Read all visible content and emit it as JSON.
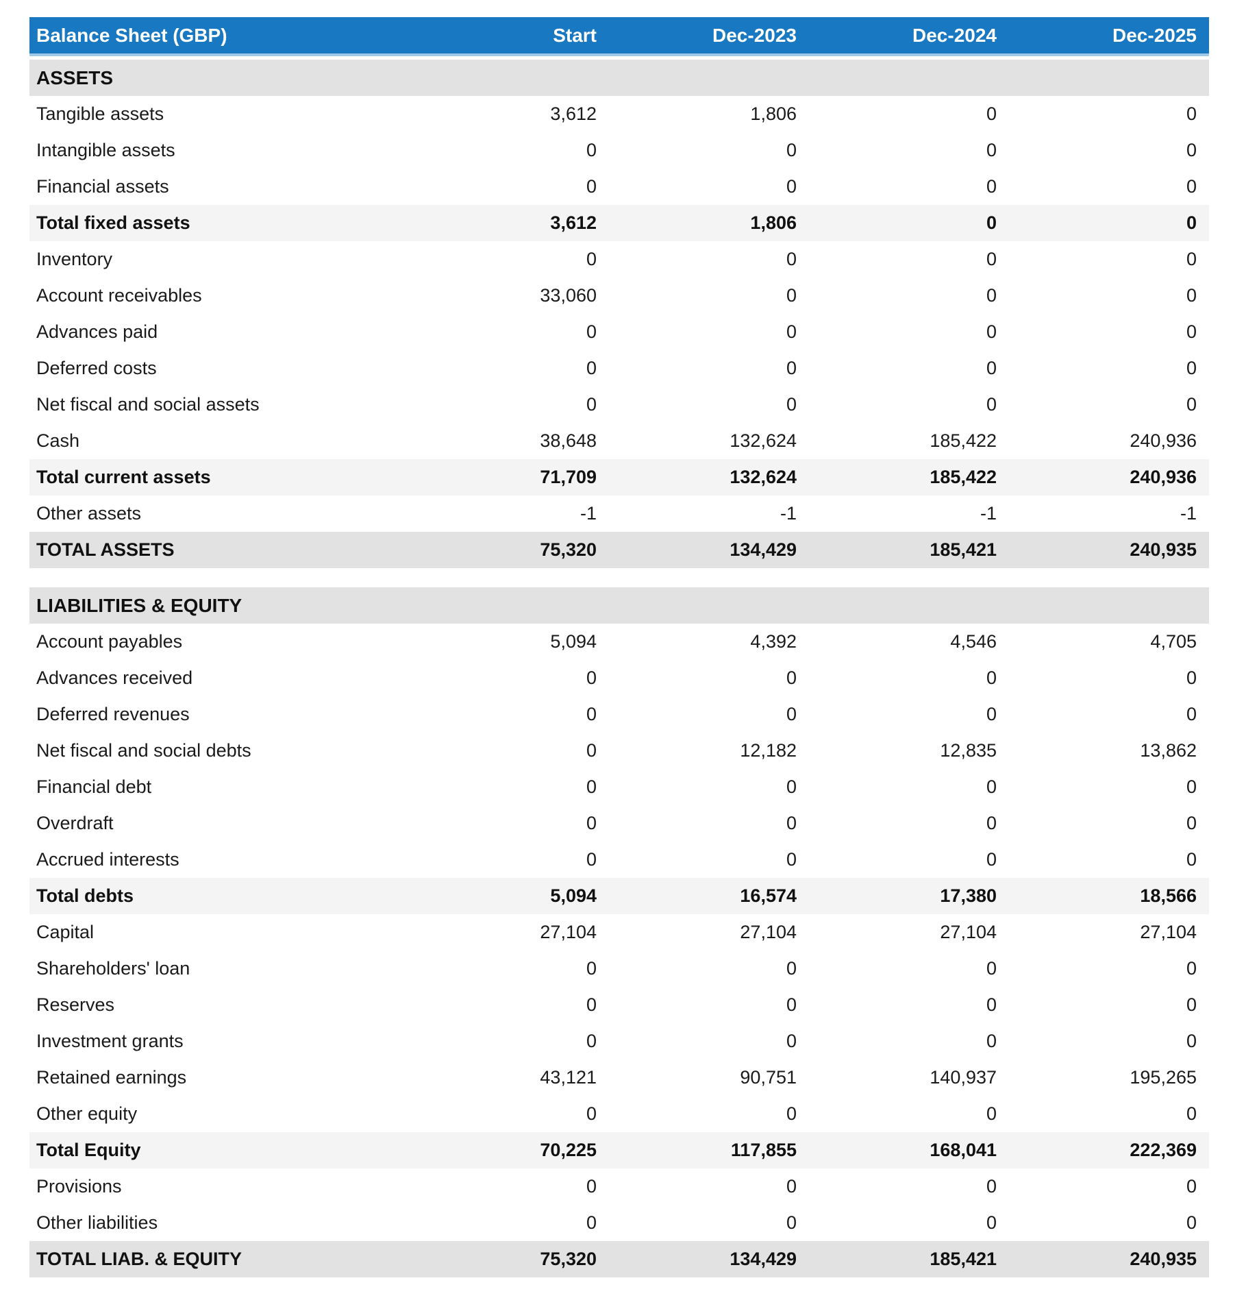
{
  "table": {
    "header": {
      "title": "Balance Sheet (GBP)",
      "columns": [
        "Start",
        "Dec-2023",
        "Dec-2024",
        "Dec-2025"
      ]
    },
    "colors": {
      "header_bg": "#1878c2",
      "header_text": "#ffffff",
      "header_underline": "#9ec9e6",
      "section_header_bg": "#e2e2e2",
      "subtotal_bg": "#f4f4f4",
      "grandtotal_bg": "#e2e2e2"
    },
    "sections": [
      {
        "name": "ASSETS",
        "rows": [
          {
            "label": "Tangible assets",
            "values": [
              "3,612",
              "1,806",
              "0",
              "0"
            ],
            "style": "normal"
          },
          {
            "label": "Intangible assets",
            "values": [
              "0",
              "0",
              "0",
              "0"
            ],
            "style": "normal"
          },
          {
            "label": "Financial assets",
            "values": [
              "0",
              "0",
              "0",
              "0"
            ],
            "style": "normal"
          },
          {
            "label": "Total fixed assets",
            "values": [
              "3,612",
              "1,806",
              "0",
              "0"
            ],
            "style": "subtotal"
          },
          {
            "label": "Inventory",
            "values": [
              "0",
              "0",
              "0",
              "0"
            ],
            "style": "normal"
          },
          {
            "label": "Account receivables",
            "values": [
              "33,060",
              "0",
              "0",
              "0"
            ],
            "style": "normal"
          },
          {
            "label": "Advances paid",
            "values": [
              "0",
              "0",
              "0",
              "0"
            ],
            "style": "normal"
          },
          {
            "label": "Deferred costs",
            "values": [
              "0",
              "0",
              "0",
              "0"
            ],
            "style": "normal"
          },
          {
            "label": "Net fiscal and social assets",
            "values": [
              "0",
              "0",
              "0",
              "0"
            ],
            "style": "normal"
          },
          {
            "label": "Cash",
            "values": [
              "38,648",
              "132,624",
              "185,422",
              "240,936"
            ],
            "style": "normal"
          },
          {
            "label": "Total current assets",
            "values": [
              "71,709",
              "132,624",
              "185,422",
              "240,936"
            ],
            "style": "subtotal"
          },
          {
            "label": "Other assets",
            "values": [
              "-1",
              "-1",
              "-1",
              "-1"
            ],
            "style": "normal"
          },
          {
            "label": "TOTAL ASSETS",
            "values": [
              "75,320",
              "134,429",
              "185,421",
              "240,935"
            ],
            "style": "grandtotal"
          }
        ]
      },
      {
        "name": "LIABILITIES & EQUITY",
        "rows": [
          {
            "label": "Account payables",
            "values": [
              "5,094",
              "4,392",
              "4,546",
              "4,705"
            ],
            "style": "normal"
          },
          {
            "label": "Advances received",
            "values": [
              "0",
              "0",
              "0",
              "0"
            ],
            "style": "normal"
          },
          {
            "label": "Deferred revenues",
            "values": [
              "0",
              "0",
              "0",
              "0"
            ],
            "style": "normal"
          },
          {
            "label": "Net fiscal and social debts",
            "values": [
              "0",
              "12,182",
              "12,835",
              "13,862"
            ],
            "style": "normal"
          },
          {
            "label": "Financial debt",
            "values": [
              "0",
              "0",
              "0",
              "0"
            ],
            "style": "normal"
          },
          {
            "label": "Overdraft",
            "values": [
              "0",
              "0",
              "0",
              "0"
            ],
            "style": "normal"
          },
          {
            "label": "Accrued interests",
            "values": [
              "0",
              "0",
              "0",
              "0"
            ],
            "style": "normal"
          },
          {
            "label": "Total debts",
            "values": [
              "5,094",
              "16,574",
              "17,380",
              "18,566"
            ],
            "style": "subtotal"
          },
          {
            "label": "Capital",
            "values": [
              "27,104",
              "27,104",
              "27,104",
              "27,104"
            ],
            "style": "normal"
          },
          {
            "label": "Shareholders' loan",
            "values": [
              "0",
              "0",
              "0",
              "0"
            ],
            "style": "normal"
          },
          {
            "label": "Reserves",
            "values": [
              "0",
              "0",
              "0",
              "0"
            ],
            "style": "normal"
          },
          {
            "label": "Investment grants",
            "values": [
              "0",
              "0",
              "0",
              "0"
            ],
            "style": "normal"
          },
          {
            "label": "Retained earnings",
            "values": [
              "43,121",
              "90,751",
              "140,937",
              "195,265"
            ],
            "style": "normal"
          },
          {
            "label": "Other equity",
            "values": [
              "0",
              "0",
              "0",
              "0"
            ],
            "style": "normal"
          },
          {
            "label": "Total Equity",
            "values": [
              "70,225",
              "117,855",
              "168,041",
              "222,369"
            ],
            "style": "subtotal"
          },
          {
            "label": "Provisions",
            "values": [
              "0",
              "0",
              "0",
              "0"
            ],
            "style": "normal"
          },
          {
            "label": "Other liabilities",
            "values": [
              "0",
              "0",
              "0",
              "0"
            ],
            "style": "normal"
          },
          {
            "label": "TOTAL LIAB. & EQUITY",
            "values": [
              "75,320",
              "134,429",
              "185,421",
              "240,935"
            ],
            "style": "grandtotal"
          }
        ]
      }
    ]
  }
}
